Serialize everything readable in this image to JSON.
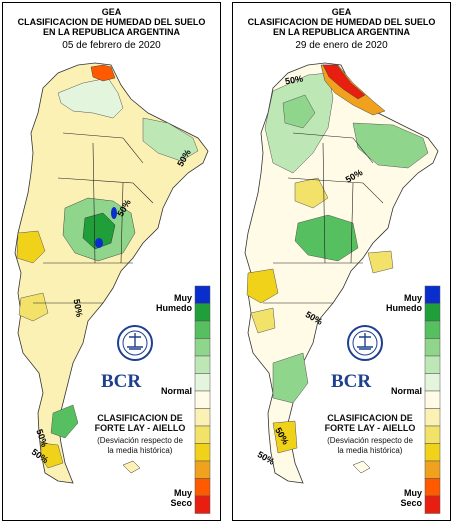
{
  "panels": [
    {
      "gea": "GEA",
      "title_line1": "CLASIFICACION DE HUMEDAD DEL SUELO",
      "title_line2": "EN LA REPUBLICA ARGENTINA",
      "date": "05 de febrero de 2020",
      "legend_top": "Muy",
      "legend_top2": "Humedo",
      "legend_mid": "Normal",
      "legend_bottom": "Muy",
      "legend_bottom2": "Seco",
      "method_line1": "CLASIFICACION DE",
      "method_line2": "FORTE LAY - AIELLO",
      "method_line3": "(Desviación respecto de",
      "method_line4": "la media histórica)",
      "logo_text": "BCR",
      "pct_labels": [
        "50%",
        "50%",
        "50%",
        "50%",
        "50%"
      ]
    },
    {
      "gea": "GEA",
      "title_line1": "CLASIFICACION DE HUMEDAD DEL SUELO",
      "title_line2": "EN LA REPUBLICA ARGENTINA",
      "date": "29 de enero de 2020",
      "legend_top": "Muy",
      "legend_top2": "Humedo",
      "legend_mid": "Normal",
      "legend_bottom": "Muy",
      "legend_bottom2": "Seco",
      "method_line1": "CLASIFICACION DE",
      "method_line2": "FORTE LAY - AIELLO",
      "method_line3": "(Desviación respecto de",
      "method_line4": "la media histórica)",
      "logo_text": "BCR",
      "pct_labels": [
        "50%",
        "50%",
        "50%",
        "50%",
        "50%"
      ]
    }
  ],
  "legend_colors": [
    "#0a2ecc",
    "#1f9e3a",
    "#56c060",
    "#8fd68c",
    "#bde8b5",
    "#e3f5dc",
    "#fffbe6",
    "#fbf1b5",
    "#f2e26a",
    "#f1d21a",
    "#f0a21f",
    "#ff5a00",
    "#e81e10"
  ]
}
